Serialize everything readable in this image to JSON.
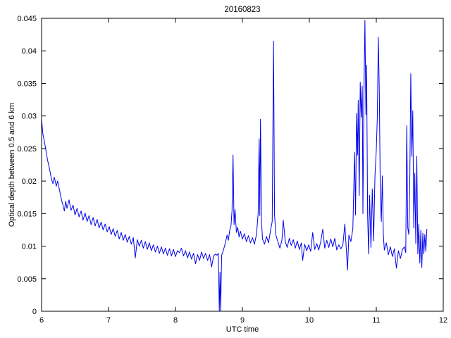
{
  "figure": {
    "title": "20160823",
    "xlabel": "UTC time",
    "ylabel": "Optical depth between 0.5 and 6 km"
  },
  "chart_data": {
    "type": "line",
    "title": "20160823",
    "xlabel": "UTC time",
    "ylabel": "Optical depth between 0.5 and 6 km",
    "xlim": [
      6,
      12
    ],
    "ylim": [
      0,
      0.045
    ],
    "xticks": [
      6,
      7,
      8,
      9,
      10,
      11,
      12
    ],
    "xtick_labels": [
      "6",
      "7",
      "8",
      "9",
      "10",
      "11",
      "12"
    ],
    "yticks": [
      0,
      0.005,
      0.01,
      0.015,
      0.02,
      0.025,
      0.03,
      0.035,
      0.04,
      0.045
    ],
    "ytick_labels": [
      "0",
      "0.005",
      "0.01",
      "0.015",
      "0.02",
      "0.025",
      "0.03",
      "0.035",
      "0.04",
      "0.045"
    ],
    "grid": false,
    "legend_position": "none",
    "line_color": "#0000ee",
    "axis_color": "#000000",
    "background": "#ffffff",
    "series": [
      {
        "name": "optical-depth-0.5-6km",
        "points": [
          [
            6.0,
            0.0295
          ],
          [
            6.02,
            0.0272
          ],
          [
            6.04,
            0.0262
          ],
          [
            6.06,
            0.025
          ],
          [
            6.09,
            0.0232
          ],
          [
            6.12,
            0.0218
          ],
          [
            6.15,
            0.0202
          ],
          [
            6.17,
            0.0196
          ],
          [
            6.19,
            0.0206
          ],
          [
            6.22,
            0.0192
          ],
          [
            6.24,
            0.02
          ],
          [
            6.27,
            0.0185
          ],
          [
            6.3,
            0.017
          ],
          [
            6.32,
            0.0163
          ],
          [
            6.34,
            0.0154
          ],
          [
            6.36,
            0.0169
          ],
          [
            6.38,
            0.0158
          ],
          [
            6.41,
            0.0171
          ],
          [
            6.44,
            0.0155
          ],
          [
            6.47,
            0.0163
          ],
          [
            6.5,
            0.0148
          ],
          [
            6.53,
            0.0158
          ],
          [
            6.56,
            0.0145
          ],
          [
            6.59,
            0.0154
          ],
          [
            6.62,
            0.014
          ],
          [
            6.65,
            0.0151
          ],
          [
            6.68,
            0.0138
          ],
          [
            6.71,
            0.0147
          ],
          [
            6.74,
            0.0133
          ],
          [
            6.77,
            0.0144
          ],
          [
            6.8,
            0.0131
          ],
          [
            6.83,
            0.0141
          ],
          [
            6.86,
            0.0128
          ],
          [
            6.89,
            0.0137
          ],
          [
            6.92,
            0.0125
          ],
          [
            6.95,
            0.0134
          ],
          [
            6.98,
            0.0122
          ],
          [
            7.01,
            0.013
          ],
          [
            7.04,
            0.0118
          ],
          [
            7.07,
            0.0127
          ],
          [
            7.1,
            0.0115
          ],
          [
            7.13,
            0.0124
          ],
          [
            7.16,
            0.0111
          ],
          [
            7.19,
            0.0121
          ],
          [
            7.22,
            0.0109
          ],
          [
            7.25,
            0.0118
          ],
          [
            7.28,
            0.0106
          ],
          [
            7.31,
            0.0115
          ],
          [
            7.34,
            0.0103
          ],
          [
            7.37,
            0.0113
          ],
          [
            7.4,
            0.0082
          ],
          [
            7.43,
            0.011
          ],
          [
            7.46,
            0.01
          ],
          [
            7.49,
            0.0109
          ],
          [
            7.52,
            0.0097
          ],
          [
            7.55,
            0.0107
          ],
          [
            7.58,
            0.0095
          ],
          [
            7.61,
            0.0105
          ],
          [
            7.64,
            0.0093
          ],
          [
            7.67,
            0.0102
          ],
          [
            7.7,
            0.0091
          ],
          [
            7.73,
            0.01
          ],
          [
            7.76,
            0.0089
          ],
          [
            7.79,
            0.0099
          ],
          [
            7.82,
            0.0088
          ],
          [
            7.85,
            0.0097
          ],
          [
            7.88,
            0.0086
          ],
          [
            7.91,
            0.0096
          ],
          [
            7.94,
            0.0085
          ],
          [
            7.97,
            0.0095
          ],
          [
            8.0,
            0.0084
          ],
          [
            8.03,
            0.0093
          ],
          [
            8.06,
            0.009
          ],
          [
            8.09,
            0.0097
          ],
          [
            8.12,
            0.0085
          ],
          [
            8.15,
            0.0093
          ],
          [
            8.18,
            0.0082
          ],
          [
            8.21,
            0.0091
          ],
          [
            8.24,
            0.008
          ],
          [
            8.27,
            0.0089
          ],
          [
            8.3,
            0.0073
          ],
          [
            8.33,
            0.0087
          ],
          [
            8.36,
            0.0078
          ],
          [
            8.39,
            0.0091
          ],
          [
            8.42,
            0.0081
          ],
          [
            8.45,
            0.0089
          ],
          [
            8.48,
            0.0078
          ],
          [
            8.51,
            0.0087
          ],
          [
            8.54,
            0.0068
          ],
          [
            8.57,
            0.0085
          ],
          [
            8.6,
            0.0088
          ],
          [
            8.62,
            0.0086
          ],
          [
            8.64,
            0.0089
          ],
          [
            8.655,
            0.0
          ],
          [
            8.665,
            0.006
          ],
          [
            8.675,
            0.0
          ],
          [
            8.69,
            0.0086
          ],
          [
            8.71,
            0.0092
          ],
          [
            8.73,
            0.0099
          ],
          [
            8.75,
            0.0107
          ],
          [
            8.77,
            0.0117
          ],
          [
            8.79,
            0.0109
          ],
          [
            8.81,
            0.0124
          ],
          [
            8.83,
            0.0132
          ],
          [
            8.845,
            0.0155
          ],
          [
            8.86,
            0.024
          ],
          [
            8.875,
            0.0133
          ],
          [
            8.89,
            0.0156
          ],
          [
            8.91,
            0.0121
          ],
          [
            8.93,
            0.0129
          ],
          [
            8.95,
            0.0114
          ],
          [
            8.97,
            0.0123
          ],
          [
            9.0,
            0.0111
          ],
          [
            9.03,
            0.0119
          ],
          [
            9.06,
            0.0107
          ],
          [
            9.09,
            0.0116
          ],
          [
            9.12,
            0.0105
          ],
          [
            9.15,
            0.0113
          ],
          [
            9.18,
            0.0103
          ],
          [
            9.21,
            0.0118
          ],
          [
            9.235,
            0.015
          ],
          [
            9.25,
            0.0265
          ],
          [
            9.26,
            0.0147
          ],
          [
            9.27,
            0.0295
          ],
          [
            9.285,
            0.0139
          ],
          [
            9.3,
            0.0111
          ],
          [
            9.33,
            0.0103
          ],
          [
            9.36,
            0.0115
          ],
          [
            9.39,
            0.0105
          ],
          [
            9.42,
            0.0124
          ],
          [
            9.445,
            0.0138
          ],
          [
            9.465,
            0.0415
          ],
          [
            9.48,
            0.0148
          ],
          [
            9.5,
            0.0117
          ],
          [
            9.53,
            0.0107
          ],
          [
            9.56,
            0.0097
          ],
          [
            9.59,
            0.0109
          ],
          [
            9.61,
            0.014
          ],
          [
            9.64,
            0.0107
          ],
          [
            9.67,
            0.0098
          ],
          [
            9.7,
            0.0112
          ],
          [
            9.73,
            0.0101
          ],
          [
            9.76,
            0.011
          ],
          [
            9.79,
            0.0097
          ],
          [
            9.82,
            0.0108
          ],
          [
            9.85,
            0.0095
          ],
          [
            9.88,
            0.0105
          ],
          [
            9.9,
            0.0078
          ],
          [
            9.93,
            0.0103
          ],
          [
            9.96,
            0.0093
          ],
          [
            9.99,
            0.0102
          ],
          [
            10.02,
            0.0092
          ],
          [
            10.05,
            0.0121
          ],
          [
            10.08,
            0.0095
          ],
          [
            10.11,
            0.0104
          ],
          [
            10.14,
            0.0094
          ],
          [
            10.17,
            0.0107
          ],
          [
            10.2,
            0.0126
          ],
          [
            10.23,
            0.0097
          ],
          [
            10.26,
            0.0109
          ],
          [
            10.29,
            0.0098
          ],
          [
            10.32,
            0.0111
          ],
          [
            10.35,
            0.0099
          ],
          [
            10.38,
            0.0112
          ],
          [
            10.41,
            0.0094
          ],
          [
            10.44,
            0.0102
          ],
          [
            10.47,
            0.0096
          ],
          [
            10.5,
            0.0101
          ],
          [
            10.53,
            0.0134
          ],
          [
            10.57,
            0.0063
          ],
          [
            10.59,
            0.0117
          ],
          [
            10.62,
            0.0107
          ],
          [
            10.65,
            0.0127
          ],
          [
            10.675,
            0.0244
          ],
          [
            10.69,
            0.0148
          ],
          [
            10.705,
            0.0304
          ],
          [
            10.72,
            0.024
          ],
          [
            10.73,
            0.0324
          ],
          [
            10.745,
            0.0178
          ],
          [
            10.76,
            0.0352
          ],
          [
            10.775,
            0.0298
          ],
          [
            10.79,
            0.0346
          ],
          [
            10.8,
            0.015
          ],
          [
            10.815,
            0.033
          ],
          [
            10.83,
            0.0447
          ],
          [
            10.845,
            0.0302
          ],
          [
            10.855,
            0.0378
          ],
          [
            10.87,
            0.0148
          ],
          [
            10.885,
            0.0088
          ],
          [
            10.9,
            0.0178
          ],
          [
            10.92,
            0.0098
          ],
          [
            10.94,
            0.0188
          ],
          [
            10.96,
            0.0108
          ],
          [
            10.98,
            0.0208
          ],
          [
            11.0,
            0.0248
          ],
          [
            11.015,
            0.0298
          ],
          [
            11.03,
            0.0421
          ],
          [
            11.045,
            0.0338
          ],
          [
            11.06,
            0.0178
          ],
          [
            11.075,
            0.0138
          ],
          [
            11.09,
            0.0208
          ],
          [
            11.105,
            0.0118
          ],
          [
            11.12,
            0.0094
          ],
          [
            11.15,
            0.0105
          ],
          [
            11.18,
            0.0087
          ],
          [
            11.21,
            0.0099
          ],
          [
            11.24,
            0.0084
          ],
          [
            11.27,
            0.0096
          ],
          [
            11.3,
            0.0066
          ],
          [
            11.33,
            0.0093
          ],
          [
            11.36,
            0.0081
          ],
          [
            11.39,
            0.0095
          ],
          [
            11.42,
            0.0099
          ],
          [
            11.44,
            0.009
          ],
          [
            11.455,
            0.0285
          ],
          [
            11.47,
            0.0128
          ],
          [
            11.485,
            0.0118
          ],
          [
            11.5,
            0.0198
          ],
          [
            11.515,
            0.0365
          ],
          [
            11.53,
            0.0238
          ],
          [
            11.545,
            0.0308
          ],
          [
            11.56,
            0.0128
          ],
          [
            11.575,
            0.0212
          ],
          [
            11.59,
            0.0104
          ],
          [
            11.605,
            0.0238
          ],
          [
            11.62,
            0.0088
          ],
          [
            11.635,
            0.0134
          ],
          [
            11.65,
            0.0074
          ],
          [
            11.665,
            0.0124
          ],
          [
            11.68,
            0.0067
          ],
          [
            11.695,
            0.012
          ],
          [
            11.71,
            0.0088
          ],
          [
            11.725,
            0.0118
          ],
          [
            11.74,
            0.0092
          ],
          [
            11.755,
            0.0126
          ]
        ]
      }
    ]
  }
}
